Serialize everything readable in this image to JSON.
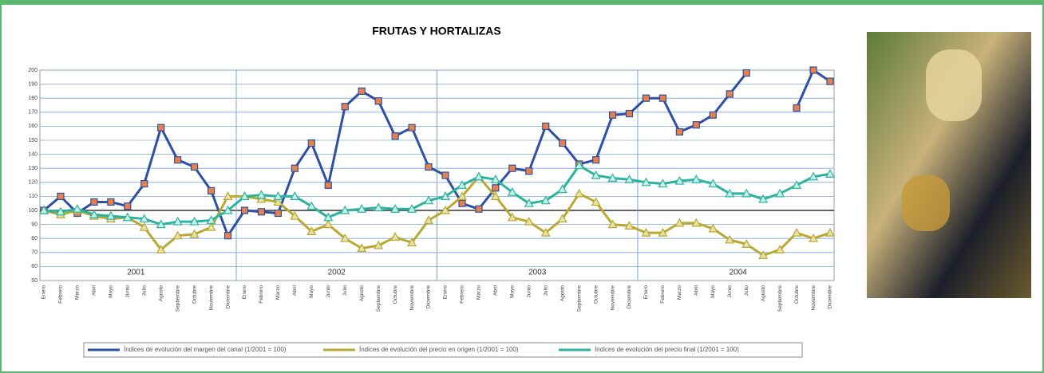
{
  "chart_data": {
    "type": "line",
    "title": "FRUTAS Y HORTALIZAS",
    "categories": [
      "Enero",
      "Febrero",
      "Marzo",
      "Abril",
      "Mayo",
      "Junio",
      "Julio",
      "Agosto",
      "Septiembre",
      "Octubre",
      "Noviembre",
      "Diciembre",
      "Enero",
      "Febrero",
      "Marzo",
      "Abril",
      "Mayo",
      "Junio",
      "Julio",
      "Agosto",
      "Septiembre",
      "Octubre",
      "Noviembre",
      "Diciembre",
      "Enero",
      "Febrero",
      "Marzo",
      "Abril",
      "Mayo",
      "Junio",
      "Julio",
      "Agosto",
      "Septiembre",
      "Octubre",
      "Noviembre",
      "Diciembre",
      "Enero",
      "Febrero",
      "Marzo",
      "Abril",
      "Mayo",
      "Junio",
      "Julio",
      "Agosto",
      "Septiembre",
      "Octubre",
      "Noviembre",
      "Diciembre"
    ],
    "years": [
      "2001",
      "2002",
      "2003",
      "2004"
    ],
    "series": [
      {
        "name": "Índices de evolución del margen del canal (1/2001 = 100)",
        "color": "#2e4fa3",
        "values": [
          100,
          110,
          98,
          106,
          106,
          103,
          119,
          159,
          136,
          131,
          114,
          82,
          100,
          99,
          98,
          130,
          148,
          118,
          174,
          185,
          178,
          153,
          159,
          131,
          125,
          105,
          101,
          116,
          130,
          128,
          160,
          148,
          133,
          136,
          168,
          169,
          180,
          180,
          156,
          161,
          168,
          183,
          198,
          null,
          null,
          173,
          200,
          192
        ]
      },
      {
        "name": "Índices de evolución del precio en origen (1/2001 = 100)",
        "color": "#b9a832",
        "values": [
          100,
          97,
          100,
          96,
          94,
          95,
          88,
          72,
          82,
          83,
          88,
          110,
          110,
          108,
          106,
          96,
          85,
          90,
          80,
          73,
          75,
          81,
          77,
          93,
          100,
          110,
          124,
          110,
          95,
          92,
          84,
          94,
          112,
          106,
          90,
          89,
          84,
          84,
          91,
          91,
          87,
          79,
          76,
          68,
          72,
          84,
          80,
          84
        ]
      },
      {
        "name": "Índices de evolución del precio final (1/2001 = 100)",
        "color": "#2bb3a0",
        "values": [
          100,
          99,
          101,
          97,
          96,
          95,
          94,
          90,
          92,
          92,
          93,
          100,
          110,
          111,
          110,
          110,
          103,
          95,
          100,
          101,
          102,
          101,
          101,
          107,
          110,
          118,
          124,
          122,
          113,
          105,
          107,
          115,
          132,
          125,
          123,
          122,
          120,
          119,
          121,
          122,
          119,
          112,
          112,
          108,
          112,
          118,
          124,
          126
        ]
      }
    ],
    "ylim": [
      50,
      200
    ],
    "yticks": [
      50,
      60,
      70,
      80,
      90,
      100,
      110,
      120,
      130,
      140,
      150,
      160,
      170,
      180,
      190,
      200
    ],
    "grid": true
  }
}
